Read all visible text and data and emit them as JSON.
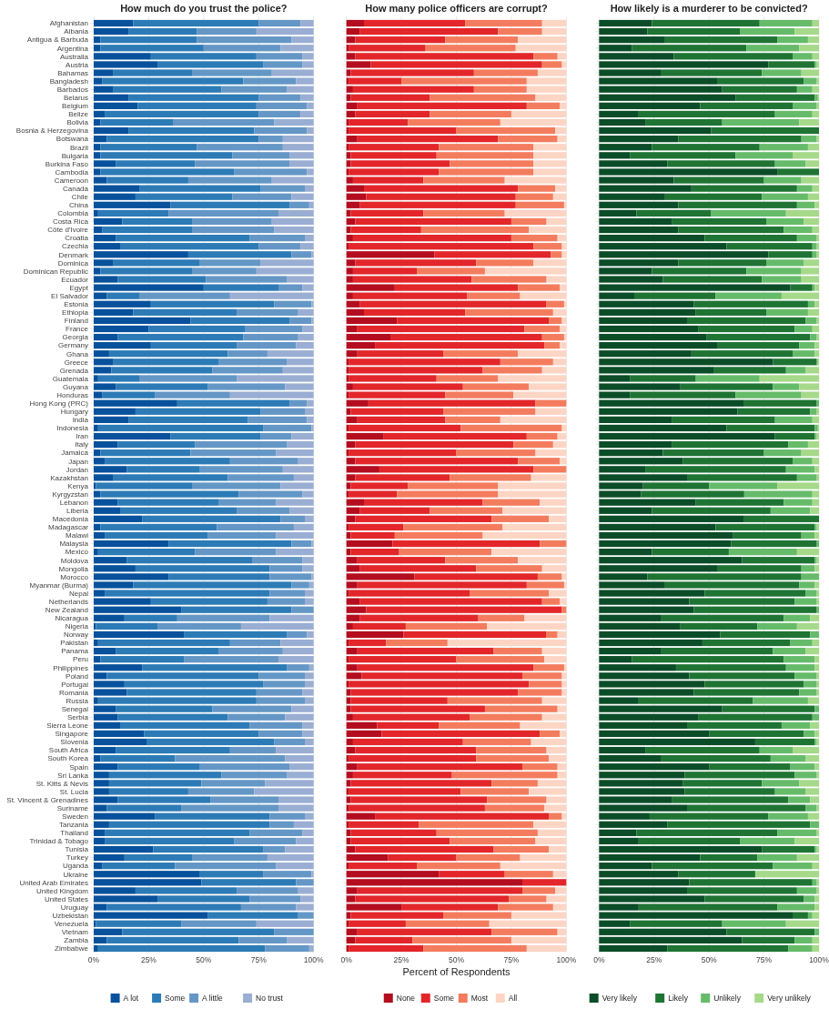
{
  "chart_data": [
    {
      "type": "bar",
      "orientation": "horizontal",
      "stacked": true,
      "title": "How much do you trust the police?",
      "legend": "bottom",
      "grid": true,
      "xlim": [
        0,
        100
      ],
      "xticks": [
        {
          "value": 0,
          "label": "0%"
        },
        {
          "value": 25,
          "label": "25%"
        },
        {
          "value": 50,
          "label": "50%"
        },
        {
          "value": 75,
          "label": "75%"
        },
        {
          "value": 100,
          "label": "100%"
        }
      ],
      "categories": [
        "Afghanistan",
        "Albania",
        "Antigua & Barbuda",
        "Argentina",
        "Australia",
        "Austria",
        "Bahamas",
        "Bangladesh",
        "Barbados",
        "Belarus",
        "Belgium",
        "Belize",
        "Bolivia",
        "Bosnia & Herzegovina",
        "Botswana",
        "Brazil",
        "Bulgaria",
        "Burkina Faso",
        "Cambodia",
        "Cameroon",
        "Canada",
        "Chile",
        "China",
        "Colombia",
        "Costa Rica",
        "Côte d'Ivoire",
        "Croatia",
        "Czechia",
        "Denmark",
        "Dominica",
        "Dominican Republic",
        "Ecuador",
        "Egypt",
        "El Salvador",
        "Estonia",
        "Ethiopia",
        "Finland",
        "France",
        "Georgia",
        "Germany",
        "Ghana",
        "Greece",
        "Grenada",
        "Guatemala",
        "Guyana",
        "Honduras",
        "Hong Kong (PRC)",
        "Hungary",
        "India",
        "Indonesia",
        "Iran",
        "Italy",
        "Jamaica",
        "Japan",
        "Jordan",
        "Kazakhstan",
        "Kenya",
        "Kyrgyzstan",
        "Lebanon",
        "Liberia",
        "Macedonia",
        "Madagascar",
        "Malawi",
        "Malaysia",
        "Mexico",
        "Moldova",
        "Mongolia",
        "Morocco",
        "Myanmar (Burma)",
        "Nepal",
        "Netherlands",
        "New Zealand",
        "Nicaragua",
        "Nigeria",
        "Norway",
        "Pakistan",
        "Panama",
        "Peru",
        "Philippines",
        "Poland",
        "Portugal",
        "Romania",
        "Russia",
        "Senegal",
        "Serbia",
        "Sierra Leone",
        "Singapore",
        "Slovenia",
        "South Africa",
        "South Korea",
        "Spain",
        "Sri Lanka",
        "St. Kitts & Nevis",
        "St. Lucia",
        "St. Vincent & Grenadines",
        "Suriname",
        "Sweden",
        "Tanzania",
        "Thailand",
        "Trinidad & Tobago",
        "Tunisia",
        "Turkey",
        "Uganda",
        "Ukraine",
        "United Arab Emirates",
        "United Kingdom",
        "United States",
        "Uruguay",
        "Uzbekistan",
        "Venezuela",
        "Vietnam",
        "Zambia",
        "Zimbabwe"
      ],
      "series": [
        {
          "name": "A lot",
          "color": "#08519c",
          "values": [
            18,
            16,
            3,
            3,
            26,
            29,
            9,
            4,
            9,
            16,
            20,
            5,
            3,
            16,
            6,
            3,
            3,
            10,
            3,
            6,
            21,
            19,
            35,
            2,
            13,
            4,
            10,
            12,
            43,
            9,
            3,
            11,
            50,
            6,
            26,
            18,
            44,
            25,
            11,
            26,
            7,
            9,
            8,
            2,
            10,
            4,
            38,
            19,
            16,
            2,
            35,
            11,
            3,
            5,
            15,
            9,
            1,
            3,
            11,
            12,
            22,
            3,
            5,
            34,
            2,
            15,
            19,
            34,
            18,
            5,
            26,
            40,
            14,
            1,
            41,
            2,
            10,
            3,
            22,
            6,
            14,
            15,
            2,
            10,
            11,
            12,
            23,
            24,
            10,
            3,
            11,
            7,
            7,
            7,
            11,
            6,
            28,
            7,
            5,
            5,
            27,
            14,
            4,
            48,
            49,
            19,
            29,
            6,
            52,
            1,
            13,
            6,
            2
          ]
        },
        {
          "name": "Some",
          "color": "#2c7bb6",
          "values": [
            57,
            31,
            44,
            47,
            48,
            48,
            36,
            64,
            49,
            59,
            54,
            70,
            33,
            57,
            69,
            44,
            60,
            36,
            61,
            37,
            55,
            44,
            54,
            32,
            32,
            41,
            61,
            63,
            47,
            39,
            42,
            40,
            34,
            15,
            56,
            47,
            45,
            44,
            57,
            39,
            54,
            48,
            46,
            19,
            42,
            24,
            51,
            57,
            54,
            75,
            41,
            35,
            41,
            57,
            33,
            52,
            44,
            63,
            46,
            53,
            63,
            53,
            47,
            56,
            44,
            57,
            61,
            46,
            72,
            75,
            53,
            50,
            24,
            28,
            47,
            60,
            47,
            38,
            66,
            69,
            63,
            59,
            72,
            44,
            50,
            59,
            52,
            58,
            52,
            34,
            37,
            51,
            42,
            36,
            42,
            34,
            52,
            73,
            66,
            59,
            50,
            31,
            33,
            29,
            43,
            46,
            42,
            61,
            41,
            39,
            69,
            60,
            76
          ]
        },
        {
          "name": "A little",
          "color": "#6497c6",
          "values": [
            19,
            27,
            43,
            35,
            21,
            18,
            36,
            24,
            30,
            19,
            23,
            19,
            46,
            24,
            11,
            39,
            26,
            43,
            33,
            38,
            20,
            27,
            9,
            50,
            36,
            37,
            25,
            19,
            9,
            28,
            29,
            37,
            11,
            41,
            17,
            28,
            10,
            26,
            25,
            27,
            18,
            31,
            32,
            44,
            35,
            34,
            8,
            20,
            27,
            22,
            14,
            42,
            39,
            31,
            38,
            30,
            40,
            29,
            26,
            24,
            11,
            35,
            31,
            9,
            37,
            23,
            15,
            19,
            8,
            16,
            17,
            10,
            42,
            38,
            9,
            23,
            29,
            43,
            10,
            21,
            19,
            21,
            22,
            36,
            26,
            24,
            20,
            14,
            21,
            50,
            41,
            30,
            29,
            30,
            31,
            44,
            16,
            11,
            24,
            28,
            10,
            34,
            46,
            22,
            8,
            28,
            23,
            25,
            7,
            34,
            18,
            22,
            20
          ]
        },
        {
          "name": "No trust",
          "color": "#9aaed3",
          "values": [
            6,
            26,
            10,
            15,
            5,
            5,
            19,
            8,
            12,
            6,
            3,
            6,
            18,
            3,
            14,
            14,
            11,
            11,
            3,
            19,
            4,
            10,
            2,
            16,
            19,
            18,
            4,
            6,
            1,
            24,
            26,
            12,
            5,
            38,
            1,
            7,
            1,
            5,
            7,
            8,
            21,
            12,
            14,
            35,
            13,
            38,
            3,
            4,
            3,
            1,
            10,
            12,
            17,
            7,
            14,
            9,
            15,
            5,
            17,
            11,
            4,
            9,
            17,
            1,
            17,
            5,
            5,
            1,
            2,
            4,
            4,
            0,
            20,
            33,
            3,
            15,
            14,
            16,
            2,
            4,
            4,
            5,
            4,
            10,
            13,
            5,
            5,
            4,
            17,
            13,
            11,
            12,
            22,
            27,
            16,
            16,
            4,
            9,
            5,
            8,
            13,
            21,
            17,
            1,
            0,
            7,
            6,
            8,
            0,
            26,
            0,
            12,
            2
          ]
        }
      ]
    },
    {
      "type": "bar",
      "orientation": "horizontal",
      "stacked": true,
      "title": "How many police officers are corrupt?",
      "xlabel": "Percent of Respondents",
      "legend": "bottom",
      "grid": true,
      "tick_labels": "x",
      "xlim": [
        0,
        100
      ],
      "xticks": [
        {
          "value": 0,
          "label": "0%"
        },
        {
          "value": 25,
          "label": "25%"
        },
        {
          "value": 50,
          "label": "50%"
        },
        {
          "value": 75,
          "label": "75%"
        },
        {
          "value": 100,
          "label": "100%"
        }
      ],
      "categories": [
        null,
        null,
        null,
        null,
        null,
        null,
        null,
        null,
        null,
        null,
        null,
        null,
        null,
        null,
        null,
        null,
        null,
        null,
        null,
        null,
        null,
        null,
        null,
        null,
        null,
        null,
        null,
        null,
        null,
        null,
        null,
        null,
        null,
        null,
        null,
        null,
        null,
        null,
        null,
        null,
        null,
        null,
        null,
        null,
        null,
        null,
        null,
        null,
        null,
        null,
        null,
        null,
        null,
        null,
        null,
        null,
        null,
        null,
        null,
        null,
        null,
        null,
        null,
        null,
        null,
        null,
        null,
        null,
        null,
        null,
        null,
        null,
        null,
        null,
        null,
        null,
        null,
        null,
        null,
        null,
        null,
        null,
        null,
        null,
        null,
        null,
        null,
        null,
        null,
        null,
        null,
        null,
        null,
        null,
        null,
        null,
        null,
        null,
        null,
        null,
        null,
        null,
        null,
        null,
        null,
        null,
        null,
        null,
        null,
        null,
        null,
        null,
        null
      ],
      "series": [
        {
          "name": "None",
          "color": "#b30d1f",
          "values": [
            8,
            6,
            4,
            1,
            4,
            11,
            2,
            1,
            3,
            2,
            5,
            4,
            1,
            1,
            5,
            1,
            2,
            2,
            1,
            3,
            8,
            9,
            6,
            2,
            4,
            2,
            3,
            1,
            40,
            4,
            3,
            3,
            22,
            3,
            6,
            8,
            23,
            5,
            20,
            13,
            5,
            1,
            1,
            1,
            3,
            1,
            10,
            2,
            5,
            1,
            17,
            4,
            1,
            4,
            15,
            4,
            2,
            1,
            8,
            6,
            4,
            1,
            2,
            21,
            2,
            5,
            6,
            31,
            5,
            1,
            6,
            9,
            6,
            3,
            26,
            1,
            5,
            1,
            5,
            7,
            1,
            2,
            2,
            2,
            3,
            14,
            16,
            3,
            4,
            1,
            5,
            3,
            2,
            1,
            2,
            1,
            13,
            1,
            2,
            2,
            4,
            19,
            1,
            42,
            80,
            5,
            4,
            25,
            2,
            1,
            5,
            4,
            1
          ]
        },
        {
          "name": "Some",
          "color": "#e3262a",
          "values": [
            46,
            63,
            41,
            35,
            81,
            78,
            56,
            24,
            55,
            36,
            77,
            34,
            27,
            49,
            64,
            41,
            39,
            45,
            41,
            32,
            70,
            68,
            71,
            33,
            71,
            32,
            72,
            84,
            53,
            55,
            29,
            54,
            56,
            52,
            85,
            46,
            69,
            76,
            69,
            77,
            39,
            69,
            61,
            40,
            50,
            44,
            76,
            42,
            40,
            51,
            65,
            72,
            49,
            74,
            70,
            43,
            26,
            22,
            54,
            32,
            62,
            25,
            20,
            67,
            22,
            40,
            53,
            56,
            77,
            55,
            83,
            89,
            54,
            24,
            65,
            17,
            62,
            49,
            80,
            73,
            82,
            76,
            44,
            61,
            53,
            28,
            72,
            50,
            55,
            58,
            75,
            45,
            64,
            51,
            62,
            62,
            79,
            32,
            39,
            45,
            63,
            31,
            31,
            30,
            20,
            75,
            70,
            44,
            42,
            26,
            61,
            26,
            34
          ]
        },
        {
          "name": "Most",
          "color": "#f47c5e",
          "values": [
            35,
            20,
            33,
            41,
            11,
            9,
            29,
            57,
            24,
            48,
            15,
            37,
            42,
            45,
            27,
            43,
            44,
            38,
            43,
            37,
            17,
            17,
            22,
            37,
            16,
            49,
            21,
            13,
            5,
            26,
            31,
            34,
            19,
            24,
            8,
            40,
            6,
            16,
            10,
            7,
            34,
            24,
            27,
            28,
            30,
            31,
            14,
            42,
            25,
            46,
            14,
            18,
            36,
            19,
            15,
            37,
            41,
            46,
            26,
            33,
            26,
            45,
            40,
            12,
            42,
            33,
            30,
            11,
            17,
            36,
            8,
            2,
            21,
            37,
            5,
            28,
            22,
            40,
            14,
            18,
            15,
            20,
            43,
            33,
            33,
            37,
            9,
            31,
            32,
            33,
            16,
            48,
            21,
            31,
            27,
            27,
            6,
            52,
            46,
            39,
            25,
            29,
            38,
            22,
            0,
            15,
            17,
            25,
            31,
            38,
            30,
            45,
            47
          ]
        },
        {
          "name": "All",
          "color": "#fdd5c4",
          "values": [
            11,
            11,
            22,
            23,
            4,
            2,
            13,
            18,
            18,
            14,
            3,
            25,
            30,
            5,
            4,
            15,
            15,
            15,
            15,
            28,
            5,
            6,
            1,
            28,
            9,
            17,
            4,
            2,
            2,
            15,
            37,
            9,
            3,
            21,
            1,
            6,
            2,
            3,
            1,
            3,
            22,
            6,
            11,
            31,
            17,
            24,
            0,
            14,
            30,
            2,
            4,
            6,
            14,
            3,
            0,
            16,
            31,
            31,
            12,
            29,
            8,
            29,
            38,
            0,
            34,
            22,
            11,
            2,
            1,
            8,
            3,
            0,
            19,
            36,
            4,
            54,
            11,
            10,
            1,
            2,
            2,
            2,
            11,
            4,
            11,
            21,
            3,
            16,
            9,
            8,
            4,
            4,
            13,
            17,
            9,
            10,
            2,
            15,
            13,
            14,
            8,
            21,
            30,
            6,
            0,
            5,
            9,
            6,
            25,
            35,
            4,
            25,
            18
          ]
        }
      ]
    },
    {
      "type": "bar",
      "orientation": "horizontal",
      "stacked": true,
      "title": "How likely is a murderer to be convicted?",
      "legend": "bottom",
      "grid": true,
      "tick_labels": "x",
      "xlim": [
        0,
        100
      ],
      "xticks": [
        {
          "value": 0,
          "label": "0%"
        },
        {
          "value": 25,
          "label": "25%"
        },
        {
          "value": 50,
          "label": "50%"
        },
        {
          "value": 75,
          "label": "75%"
        },
        {
          "value": 100,
          "label": "100%"
        }
      ],
      "categories": [
        null,
        null,
        null,
        null,
        null,
        null,
        null,
        null,
        null,
        null,
        null,
        null,
        null,
        null,
        null,
        null,
        null,
        null,
        null,
        null,
        null,
        null,
        null,
        null,
        null,
        null,
        null,
        null,
        null,
        null,
        null,
        null,
        null,
        null,
        null,
        null,
        null,
        null,
        null,
        null,
        null,
        null,
        null,
        null,
        null,
        null,
        null,
        null,
        null,
        null,
        null,
        null,
        null,
        null,
        null,
        null,
        null,
        null,
        null,
        null,
        null,
        null,
        null,
        null,
        null,
        null,
        null,
        null,
        null,
        null,
        null,
        null,
        null,
        null,
        null,
        null,
        null,
        null,
        null,
        null,
        null,
        null,
        null,
        null,
        null,
        null,
        null,
        null,
        null,
        null,
        null,
        null,
        null,
        null,
        null,
        null,
        null,
        null,
        null,
        null,
        null,
        null,
        null,
        null,
        null,
        null,
        null,
        null,
        null,
        null,
        null,
        null,
        null
      ],
      "series": [
        {
          "name": "Very likely",
          "color": "#0b4d28",
          "values": [
            24,
            22,
            30,
            15,
            34,
            77,
            28,
            54,
            56,
            62,
            46,
            18,
            21,
            51,
            36,
            24,
            14,
            31,
            81,
            34,
            42,
            30,
            36,
            17,
            33,
            36,
            48,
            58,
            77,
            36,
            24,
            29,
            87,
            16,
            43,
            44,
            40,
            45,
            49,
            54,
            42,
            79,
            52,
            14,
            37,
            14,
            66,
            63,
            33,
            58,
            80,
            33,
            29,
            38,
            21,
            40,
            20,
            19,
            44,
            24,
            66,
            53,
            61,
            60,
            24,
            65,
            54,
            22,
            30,
            48,
            41,
            43,
            28,
            37,
            55,
            47,
            28,
            15,
            35,
            41,
            48,
            43,
            18,
            56,
            45,
            40,
            50,
            71,
            21,
            28,
            50,
            39,
            38,
            39,
            33,
            40,
            23,
            31,
            17,
            18,
            74,
            46,
            24,
            36,
            41,
            40,
            48,
            18,
            88,
            14,
            58,
            65,
            31
          ]
        },
        {
          "name": "Likely",
          "color": "#1f7434",
          "values": [
            49,
            42,
            51,
            52,
            54,
            21,
            46,
            39,
            34,
            36,
            42,
            62,
            35,
            49,
            56,
            49,
            48,
            49,
            19,
            41,
            48,
            44,
            54,
            34,
            43,
            48,
            42,
            39,
            20,
            40,
            43,
            45,
            10,
            37,
            52,
            32,
            54,
            44,
            47,
            37,
            46,
            20,
            33,
            30,
            42,
            48,
            33,
            33,
            47,
            40,
            18,
            53,
            46,
            50,
            64,
            50,
            30,
            47,
            40,
            54,
            34,
            45,
            31,
            39,
            35,
            33,
            38,
            70,
            61,
            46,
            48,
            56,
            56,
            35,
            41,
            40,
            51,
            69,
            50,
            48,
            45,
            48,
            52,
            42,
            52,
            43,
            43,
            27,
            52,
            50,
            37,
            50,
            36,
            41,
            53,
            54,
            54,
            65,
            64,
            46,
            24,
            26,
            55,
            35,
            56,
            50,
            45,
            63,
            7,
            42,
            40,
            24,
            55
          ]
        },
        {
          "name": "Unlikely",
          "color": "#66bb6a",
          "values": [
            24,
            25,
            14,
            24,
            9,
            1,
            18,
            6,
            7,
            1.5,
            11,
            17,
            35,
            0,
            7,
            22,
            26,
            14,
            0,
            17,
            7,
            21,
            8,
            34,
            17,
            13,
            9,
            2,
            2,
            17,
            25,
            18,
            1,
            30,
            3,
            19,
            5,
            8,
            3,
            7,
            10,
            0.5,
            9,
            29,
            12,
            30,
            1,
            3,
            17,
            1.5,
            1,
            9,
            17,
            9,
            13,
            9,
            31,
            31,
            13,
            18,
            0,
            1,
            6,
            1,
            31,
            1,
            6,
            8,
            7,
            5,
            10,
            1,
            12,
            18,
            4,
            10,
            15,
            14,
            13,
            10,
            6,
            8,
            25,
            2,
            3,
            13,
            5,
            1,
            15,
            16,
            11,
            10,
            17,
            14,
            10,
            5,
            18,
            4,
            18,
            25,
            1,
            18,
            18,
            0,
            2,
            9,
            5,
            17,
            2,
            29,
            2,
            8,
            11
          ]
        },
        {
          "name": "Very unlikely",
          "color": "#a6d98a",
          "values": [
            3,
            11,
            5,
            9,
            3,
            1,
            8,
            1,
            3,
            0.5,
            1,
            3,
            9,
            0,
            1,
            5,
            12,
            6,
            0,
            8,
            3,
            5,
            2,
            15,
            7,
            3,
            1,
            1,
            1,
            7,
            8,
            8,
            2,
            17,
            2,
            5,
            1,
            3,
            1,
            2,
            2,
            0.5,
            6,
            27,
            9,
            8,
            0,
            1,
            3,
            0.5,
            1,
            5,
            8,
            3,
            2,
            1,
            19,
            3,
            3,
            4,
            0,
            1,
            2,
            0,
            10,
            1,
            2,
            0,
            2,
            1,
            1,
            0,
            4,
            10,
            0,
            3,
            6,
            2,
            2,
            1,
            1,
            1,
            5,
            0,
            0,
            4,
            2,
            1,
            12,
            6,
            2,
            1,
            9,
            6,
            4,
            1,
            5,
            0,
            1,
            11,
            1,
            10,
            3,
            29,
            1,
            1,
            2,
            2,
            3,
            15,
            0,
            3,
            3
          ]
        }
      ]
    }
  ]
}
